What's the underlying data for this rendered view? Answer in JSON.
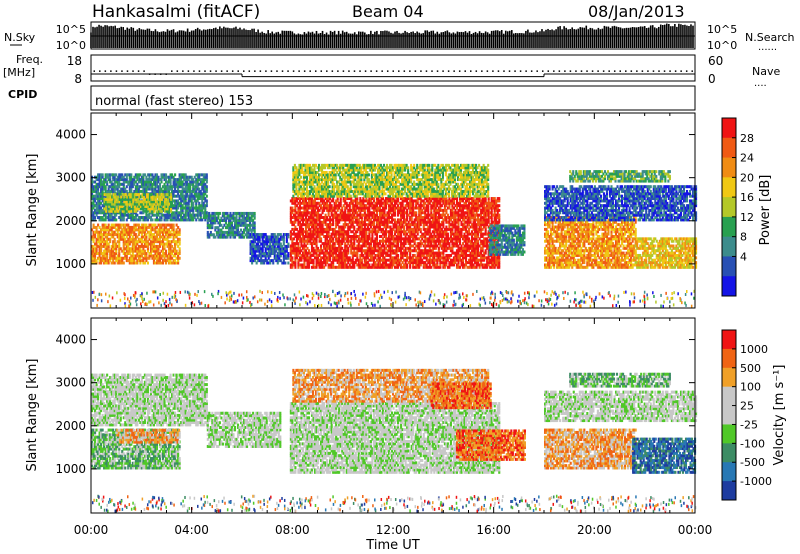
{
  "header": {
    "station": "Hankasalmi (fitACF)",
    "beam": "Beam 04",
    "date": "08/Jan/2013"
  },
  "side_labels": {
    "nsky": "N.Sky",
    "nsearch": "N.Search",
    "freq": "Freq.",
    "mhz": "[MHz]",
    "nave": "Nave",
    "cpid": "CPID",
    "dots": "......",
    "dots_short": "...."
  },
  "cpid_text": "normal (fast stereo) 153",
  "chart_data": [
    {
      "type": "line",
      "name": "noise-panel",
      "left_ticks": [
        "10^5",
        "10^0"
      ],
      "right_ticks": [
        "10^5",
        "10^0"
      ],
      "series": [
        {
          "name": "N.Sky",
          "x_hours": [
            0,
            0.2,
            1,
            2,
            3,
            4,
            5,
            6,
            7,
            8,
            12,
            16,
            17,
            18,
            18.5,
            20,
            22,
            23,
            24
          ],
          "values_log10": [
            3.5,
            4.5,
            4.2,
            3.6,
            3.4,
            3.6,
            4.0,
            3.9,
            3.2,
            3.1,
            3.1,
            3.2,
            3.3,
            3.4,
            4.0,
            4.1,
            4.0,
            4.6,
            4.4
          ]
        }
      ]
    },
    {
      "type": "line",
      "name": "freq-nave-panel",
      "left_ticks": [
        "18",
        "8"
      ],
      "right_ticks": [
        "60",
        "0"
      ],
      "freq_mhz": [
        {
          "x_hours": [
            0,
            6
          ],
          "value": 10.5
        },
        {
          "x_hours": [
            6,
            18
          ],
          "value": 9.4
        },
        {
          "x_hours": [
            18,
            24
          ],
          "value": 10.5
        }
      ],
      "nave_level": 24
    },
    {
      "type": "heatmap",
      "name": "power-panel",
      "xlabel": "",
      "ylabel": "Slant Range [km]",
      "xlim": [
        0,
        24
      ],
      "ylim": [
        0,
        4500
      ],
      "yticks": [
        1000,
        2000,
        3000,
        4000
      ],
      "colorbar": {
        "label": "Power [dB]",
        "ticks": [
          "28",
          "24",
          "20",
          "16",
          "12",
          "8",
          "4"
        ],
        "colors": [
          "#1414e6",
          "#2850b4",
          "#3c8c8c",
          "#28a050",
          "#b4c828",
          "#f0c814",
          "#f08c14",
          "#f05a14",
          "#f01414"
        ]
      },
      "blobs": [
        {
          "t0": 0,
          "t1": 3.5,
          "r0": 1000,
          "r1": 1900,
          "c": 6
        },
        {
          "t0": 0,
          "t1": 4.6,
          "r0": 2000,
          "r1": 3100,
          "c": 2
        },
        {
          "t0": 0.5,
          "t1": 3.2,
          "r0": 2200,
          "r1": 2600,
          "c": 4
        },
        {
          "t0": 4.6,
          "t1": 6.5,
          "r0": 1600,
          "r1": 2200,
          "c": 2
        },
        {
          "t0": 6.3,
          "t1": 7.8,
          "r0": 1000,
          "r1": 1700,
          "c": 1
        },
        {
          "t0": 7.9,
          "t1": 16.2,
          "r0": 900,
          "r1": 2500,
          "c": 8
        },
        {
          "t0": 8.0,
          "t1": 15.8,
          "r0": 2550,
          "r1": 3300,
          "c": 4
        },
        {
          "t0": 15.8,
          "t1": 17.2,
          "r0": 1200,
          "r1": 1900,
          "c": 2
        },
        {
          "t0": 18.0,
          "t1": 21.6,
          "r0": 900,
          "r1": 2100,
          "c": 6
        },
        {
          "t0": 21.6,
          "t1": 24,
          "r0": 900,
          "r1": 1600,
          "c": 5
        },
        {
          "t0": 18.0,
          "t1": 24,
          "r0": 2000,
          "r1": 2800,
          "c": 1
        },
        {
          "t0": 19.0,
          "t1": 23.0,
          "r0": 2900,
          "r1": 3150,
          "c": 3
        }
      ]
    },
    {
      "type": "heatmap",
      "name": "velocity-panel",
      "xlabel": "Time UT",
      "ylabel": "Slant Range [km]",
      "xlim": [
        0,
        24
      ],
      "ylim": [
        0,
        4500
      ],
      "xticks": [
        "00:00",
        "04:00",
        "08:00",
        "12:00",
        "16:00",
        "20:00",
        "00:00"
      ],
      "yticks": [
        1000,
        2000,
        3000,
        4000
      ],
      "colorbar": {
        "label": "Velocity [m s⁻¹]",
        "ticks": [
          "1000",
          "500",
          "100",
          "25",
          "-25",
          "-100",
          "-500",
          "-1000"
        ],
        "colors": [
          "#1e3ca0",
          "#2878b4",
          "#3c8c64",
          "#50c828",
          "#c8c8c8",
          "#c8c8c8",
          "#f0a028",
          "#f06414",
          "#f01414"
        ]
      },
      "blobs": [
        {
          "t0": 0,
          "t1": 3.5,
          "r0": 1000,
          "r1": 1900,
          "c": 3
        },
        {
          "t0": 0,
          "t1": 4.6,
          "r0": 2000,
          "r1": 3200,
          "c": 4
        },
        {
          "t0": 1.0,
          "t1": 3.5,
          "r0": 1600,
          "r1": 1900,
          "c": 6
        },
        {
          "t0": 4.6,
          "t1": 7.5,
          "r0": 1500,
          "r1": 2300,
          "c": 4
        },
        {
          "t0": 7.9,
          "t1": 16.2,
          "r0": 900,
          "r1": 2500,
          "c": 4
        },
        {
          "t0": 8.0,
          "t1": 15.8,
          "r0": 2550,
          "r1": 3300,
          "c": 6
        },
        {
          "t0": 13.5,
          "t1": 15.9,
          "r0": 2400,
          "r1": 3000,
          "c": 7
        },
        {
          "t0": 14.5,
          "t1": 17.2,
          "r0": 1200,
          "r1": 1900,
          "c": 7
        },
        {
          "t0": 18.0,
          "t1": 21.6,
          "r0": 1000,
          "r1": 1900,
          "c": 6
        },
        {
          "t0": 21.5,
          "t1": 24,
          "r0": 900,
          "r1": 1700,
          "c": 1
        },
        {
          "t0": 18.0,
          "t1": 24,
          "r0": 2100,
          "r1": 2800,
          "c": 4
        },
        {
          "t0": 19.0,
          "t1": 23.0,
          "r0": 2900,
          "r1": 3200,
          "c": 3
        }
      ]
    }
  ]
}
